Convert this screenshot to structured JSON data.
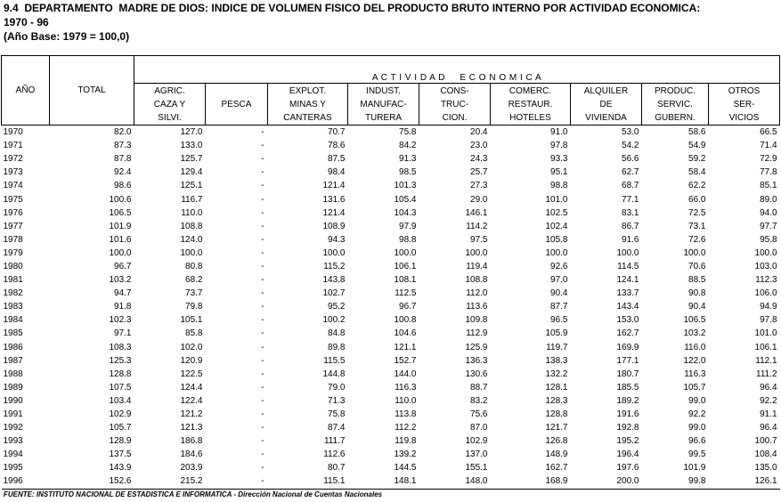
{
  "header": {
    "title": "9.4  DEPARTAMENTO  MADRE DE DIOS: INDICE DE VOLUMEN FISICO DEL PRODUCTO BRUTO INTERNO POR ACTIVIDAD ECONOMICA:",
    "period": "1970 - 96",
    "base": "(Año Base: 1979 = 100,0)"
  },
  "table": {
    "year_header": "AÑO",
    "total_header": "TOTAL",
    "group_header": "A C T I V I D A D     E C O N O M I C A",
    "columns": [
      [
        "AGRIC.",
        "CAZA Y",
        "SILVI."
      ],
      [
        "PESCA"
      ],
      [
        "EXPLOT.",
        "MINAS  Y",
        "CANTERAS"
      ],
      [
        "INDUST.",
        "MANUFAC-",
        "TURERA"
      ],
      [
        "CONS-",
        "TRUC-",
        "CION."
      ],
      [
        "COMERC.",
        "RESTAUR.",
        "HOTELES"
      ],
      [
        "ALQUILER",
        "DE",
        "VIVIENDA"
      ],
      [
        "PRODUC.",
        "SERVIC.",
        "GUBERN."
      ],
      [
        "OTROS",
        "SER-",
        "VICIOS"
      ]
    ],
    "rows": [
      [
        "1970",
        "82.0",
        "127.0",
        "-",
        "70.7",
        "75.8",
        "20.4",
        "91.0",
        "53.0",
        "58.6",
        "66.5"
      ],
      [
        "1971",
        "87.3",
        "133.0",
        "-",
        "78.6",
        "84.2",
        "23.0",
        "97.8",
        "54.2",
        "54.9",
        "71.4"
      ],
      [
        "1972",
        "87.8",
        "125.7",
        "-",
        "87.5",
        "91.3",
        "24.3",
        "93.3",
        "56.6",
        "59.2",
        "72.9"
      ],
      [
        "1973",
        "92.4",
        "129.4",
        "-",
        "98.4",
        "98.5",
        "25.7",
        "95.1",
        "62.7",
        "58.4",
        "77.8"
      ],
      [
        "1974",
        "98.6",
        "125.1",
        "-",
        "121.4",
        "101.3",
        "27.3",
        "98.8",
        "68.7",
        "62.2",
        "85.1"
      ],
      [
        "1975",
        "100.6",
        "116.7",
        "-",
        "131.6",
        "105.4",
        "29.0",
        "101.0",
        "77.1",
        "66.0",
        "89.0"
      ],
      [
        "1976",
        "106.5",
        "110.0",
        "-",
        "121.4",
        "104.3",
        "146.1",
        "102.5",
        "83.1",
        "72.5",
        "94.0"
      ],
      [
        "1977",
        "101.9",
        "108.8",
        "-",
        "108.9",
        "97.9",
        "114.2",
        "102.4",
        "86.7",
        "73.1",
        "97.7"
      ],
      [
        "1978",
        "101.6",
        "124.0",
        "-",
        "94.3",
        "98.8",
        "97.5",
        "105.8",
        "91.6",
        "72.6",
        "95.8"
      ],
      [
        "1979",
        "100.0",
        "100.0",
        "-",
        "100.0",
        "100.0",
        "100.0",
        "100.0",
        "100.0",
        "100.0",
        "100.0"
      ],
      [
        "1980",
        "96.7",
        "80.8",
        "-",
        "115.2",
        "106.1",
        "119.4",
        "92.6",
        "114.5",
        "70.6",
        "103.0"
      ],
      [
        "1981",
        "103.2",
        "68.2",
        "-",
        "143.8",
        "108.1",
        "108.8",
        "97.0",
        "124.1",
        "88.5",
        "112.3"
      ],
      [
        "1982",
        "94.7",
        "73.7",
        "-",
        "102.7",
        "112.5",
        "112.0",
        "90.4",
        "133.7",
        "90.8",
        "106.0"
      ],
      [
        "1983",
        "91.8",
        "79.8",
        "-",
        "95.2",
        "96.7",
        "113.6",
        "87.7",
        "143.4",
        "90.4",
        "94.9"
      ],
      [
        "1984",
        "102.3",
        "105.1",
        "-",
        "100.2",
        "100.8",
        "109.8",
        "96.5",
        "153.0",
        "106.5",
        "97.8"
      ],
      [
        "1985",
        "97.1",
        "85.8",
        "-",
        "84.8",
        "104.6",
        "112.9",
        "105.9",
        "162.7",
        "103.2",
        "101.0"
      ],
      [
        "1986",
        "108.3",
        "102.0",
        "-",
        "89.8",
        "121.1",
        "125.9",
        "119.7",
        "169.9",
        "116.0",
        "106.1"
      ],
      [
        "1987",
        "125.3",
        "120.9",
        "-",
        "115.5",
        "152.7",
        "136.3",
        "138.3",
        "177.1",
        "122.0",
        "112.1"
      ],
      [
        "1988",
        "128.8",
        "122.5",
        "-",
        "144.8",
        "144.0",
        "130.6",
        "132.2",
        "180.7",
        "116.3",
        "111.2"
      ],
      [
        "1989",
        "107.5",
        "124.4",
        "-",
        "79.0",
        "116.3",
        "88.7",
        "128.1",
        "185.5",
        "105.7",
        "96.4"
      ],
      [
        "1990",
        "103.4",
        "122.4",
        "-",
        "71.3",
        "110.0",
        "83.2",
        "128.3",
        "189.2",
        "99.0",
        "92.2"
      ],
      [
        "1991",
        "102.9",
        "121.2",
        "-",
        "75.8",
        "113.8",
        "75.6",
        "128.8",
        "191.6",
        "92.2",
        "91.1"
      ],
      [
        "1992",
        "105.7",
        "121.3",
        "-",
        "87.4",
        "112.2",
        "87.0",
        "121.7",
        "192.8",
        "99.0",
        "96.4"
      ],
      [
        "1993",
        "128.9",
        "186.8",
        "-",
        "111.7",
        "119.8",
        "102.9",
        "126.8",
        "195.2",
        "96.6",
        "100.7"
      ],
      [
        "1994",
        "137.5",
        "184.6",
        "-",
        "112.6",
        "139.2",
        "137.0",
        "148.9",
        "196.4",
        "99.5",
        "108.4"
      ],
      [
        "1995",
        "143.9",
        "203.9",
        "-",
        "80.7",
        "144.5",
        "155.1",
        "162.7",
        "197.6",
        "101.9",
        "135.0"
      ],
      [
        "1996",
        "152.6",
        "215.2",
        "-",
        "115.1",
        "148.1",
        "148.0",
        "168.9",
        "200.0",
        "99.8",
        "126.1"
      ]
    ]
  },
  "footer": {
    "source": "FUENTE: INSTITUTO NACIONAL DE ESTADISTICA E INFORMATICA - Dirección Nacional de Cuentas Nacionales"
  }
}
